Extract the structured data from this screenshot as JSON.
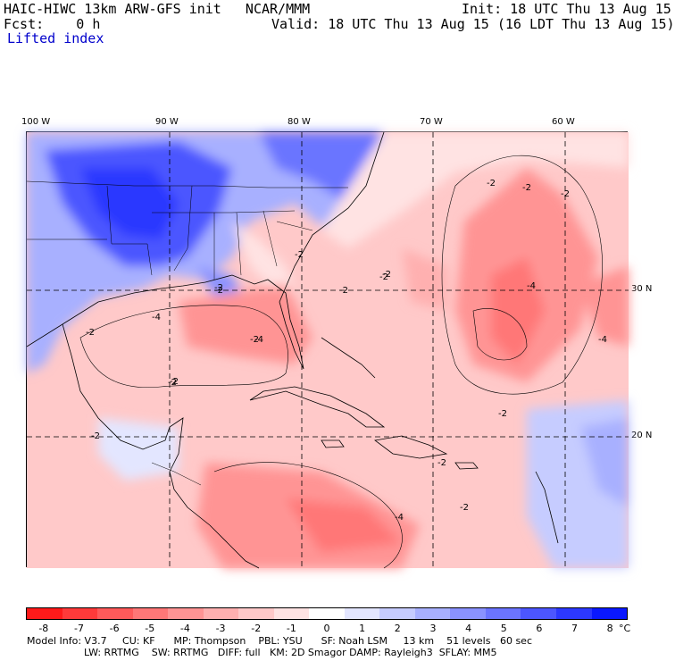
{
  "header": {
    "model_title": "HAIC-HIWC 13km ARW-GFS init   NCAR/MMM",
    "init": "Init: 18 UTC Thu 13 Aug 15",
    "fcst": "Fcst:    0 h",
    "valid": "Valid: 18 UTC Thu 13 Aug 15 (16 LDT Thu 13 Aug 15)",
    "field": "Lifted index"
  },
  "map": {
    "lon_labels": [
      "100 W",
      "90 W",
      "80 W",
      "70 W",
      "60 W"
    ],
    "lat_labels": [
      "30 N",
      "20 N"
    ],
    "contour_labels": [
      "-2",
      "-2",
      "-2",
      "-2",
      "-2",
      "-2",
      "-2",
      "-2",
      "-4",
      "-4",
      "-4",
      "-2",
      "-2",
      "-2",
      "-2",
      "-2",
      "-2",
      "-2",
      "-4",
      "-2",
      "-4",
      "-2"
    ]
  },
  "colorbar": {
    "labels": [
      "-8",
      "-7",
      "-6",
      "-5",
      "-4",
      "-3",
      "-2",
      "-1",
      "0",
      "1",
      "2",
      "3",
      "4",
      "5",
      "6",
      "7",
      "8"
    ],
    "unit": "°C",
    "colors": [
      "#ff1a1a",
      "#ff3a3a",
      "#ff5a5a",
      "#ff7777",
      "#ff9494",
      "#ffb0b0",
      "#ffc9c9",
      "#ffe3e3",
      "#ffffff",
      "#e3e6ff",
      "#c6ccff",
      "#a8b0ff",
      "#8a92ff",
      "#6b74ff",
      "#4c56ff",
      "#2c38ff",
      "#0a18ff"
    ]
  },
  "footer": {
    "line1": "Model Info: V3.7     CU: KF      MP: Thompson    PBL: YSU      SF: Noah LSM     13 km    51 levels   60 sec",
    "line2": "LW: RRTMG    SW: RRTMG   DIFF: full   KM: 2D Smagor DAMP: Rayleigh3  SFLAY: MM5"
  }
}
